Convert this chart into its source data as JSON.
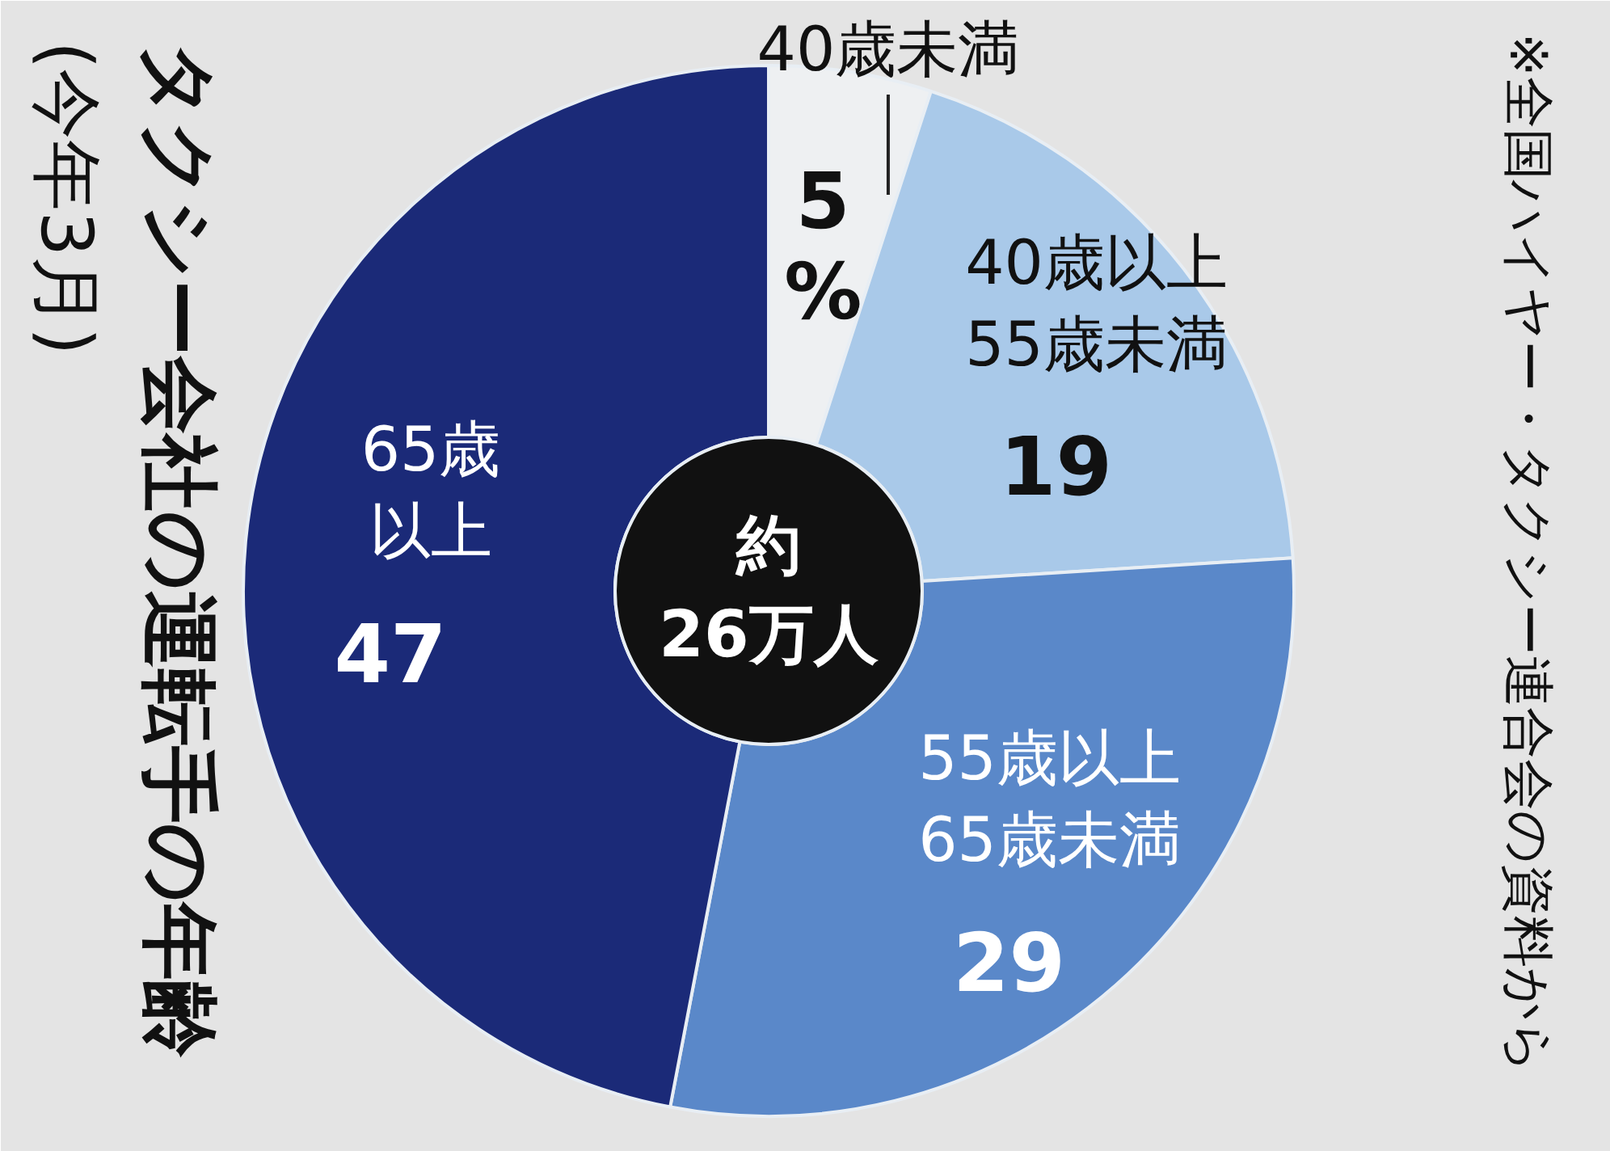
{
  "chart_data": {
    "type": "donut",
    "title": "タクシー会社の運転手の年齢",
    "subtitle": "(今年3月)",
    "categories": [
      "40歳未満",
      "40歳以上55歳未満",
      "55歳以上65歳未満",
      "65歳以上"
    ],
    "values": [
      5,
      19,
      29,
      47
    ],
    "colors": [
      "#eef0f2",
      "#a9c9e9",
      "#5a88c9",
      "#1b2a78"
    ],
    "value_labels": [
      "5%",
      "19",
      "29",
      "47"
    ],
    "annotations": [
      "約26万人",
      "※全国ハイヤー・タクシー連合会の資料から"
    ]
  }
}
